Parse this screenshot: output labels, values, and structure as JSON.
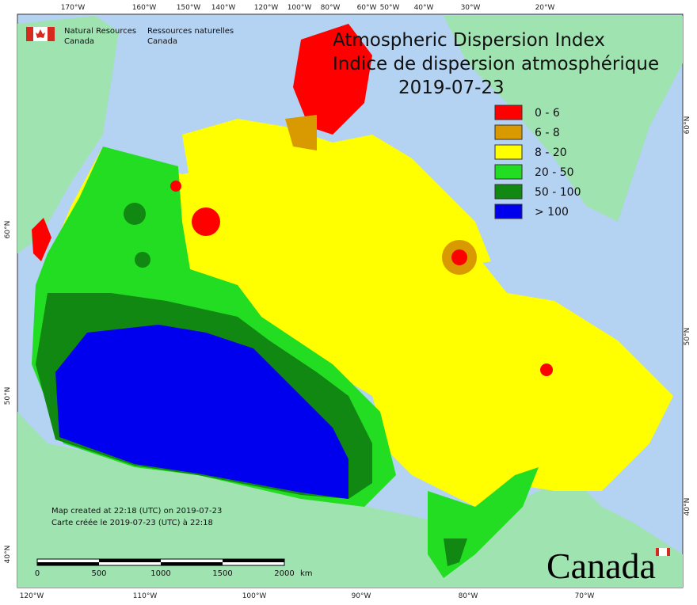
{
  "header": {
    "title_en": "Atmospheric Dispersion Index",
    "title_fr": "Indice de dispersion atmosphérique",
    "date": "2019-07-23"
  },
  "agency": {
    "en": [
      "Natural Resources",
      "Canada"
    ],
    "fr": [
      "Ressources naturelles",
      "Canada"
    ]
  },
  "legend": [
    {
      "label": "0 - 6",
      "color": "#ff0000"
    },
    {
      "label": "6 - 8",
      "color": "#d89a00"
    },
    {
      "label": "8 - 20",
      "color": "#ffff00"
    },
    {
      "label": "20 - 50",
      "color": "#22dd22"
    },
    {
      "label": "50 - 100",
      "color": "#118811"
    },
    {
      "label": "> 100",
      "color": "#0000ee"
    }
  ],
  "graticule": {
    "top": [
      "170°W",
      "160°W",
      "150°W",
      "140°W",
      "120°W",
      "100°W",
      "80°W",
      "60°W",
      "50°W",
      "40°W",
      "30°W",
      "20°W"
    ],
    "bottom": [
      "120°W",
      "110°W",
      "100°W",
      "90°W",
      "80°W",
      "70°W"
    ],
    "left": [
      "60°N",
      "50°N",
      "40°N"
    ],
    "right": [
      "60°N",
      "50°N",
      "40°N"
    ]
  },
  "credits": [
    "Map created at 22:18 (UTC) on 2019-07-23",
    "Carte créée le 2019-07-23 (UTC) à 22:18"
  ],
  "scale_bar": {
    "labels": [
      "0",
      "500",
      "1000",
      "1500",
      "2000"
    ],
    "unit": "km"
  },
  "wordmark": "Canada"
}
